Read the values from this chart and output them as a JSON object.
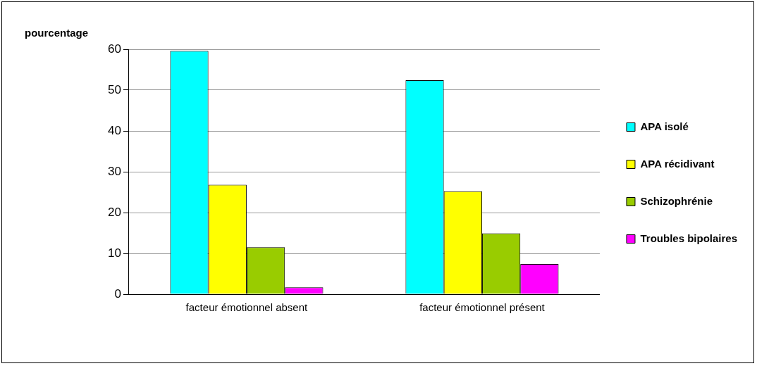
{
  "chart_data": {
    "type": "bar",
    "ylabel": "pourcentage",
    "categories": [
      "facteur émotionnel absent",
      "facteur émotionnel présent"
    ],
    "series": [
      {
        "name": "APA isolé",
        "color": "#00ffff",
        "values": [
          59.6,
          52.4
        ]
      },
      {
        "name": "APA récidivant",
        "color": "#ffff00",
        "values": [
          26.8,
          25.2
        ]
      },
      {
        "name": "Schizophrénie",
        "color": "#99cc00",
        "values": [
          11.5,
          14.9
        ]
      },
      {
        "name": "Troubles bipolaires",
        "color": "#ff00ff",
        "values": [
          1.7,
          7.4
        ]
      }
    ],
    "ylim": [
      0,
      60
    ],
    "yticks": [
      0,
      10,
      20,
      30,
      40,
      50,
      60
    ],
    "grid": "y",
    "legend": "right"
  }
}
